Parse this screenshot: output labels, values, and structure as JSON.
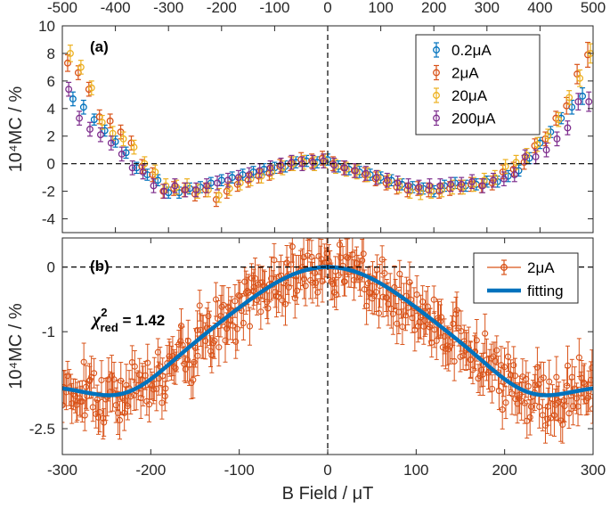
{
  "chart_data": [
    {
      "type": "scatter",
      "panel": "(a)",
      "xlabel_top": "",
      "ylabel": "10⁴MC / %",
      "xlim": [
        -500,
        500
      ],
      "ylim": [
        -5,
        10
      ],
      "xticks": [
        -500,
        -400,
        -300,
        -200,
        -100,
        0,
        100,
        200,
        300,
        400,
        500
      ],
      "xtick_labels": [
        "-500",
        "-400",
        "-300",
        "-200",
        "-100",
        "0",
        "100",
        "200",
        "300",
        "400",
        "500"
      ],
      "yticks": [
        -4,
        -2,
        0,
        2,
        4,
        6,
        8,
        10
      ],
      "ytick_labels": [
        "-4",
        "-2",
        "0",
        "2",
        "4",
        "6",
        "8",
        "10"
      ],
      "legend": {
        "placement": "top-right",
        "entries": [
          "0.2μA",
          "2μA",
          "20μA",
          "200μA"
        ]
      },
      "series": [
        {
          "name": "0.2μA",
          "color": "#0072BD",
          "x_step": 20,
          "x": [
            -480,
            -460,
            -440,
            -420,
            -400,
            -380,
            -360,
            -340,
            -320,
            -300,
            -280,
            -260,
            -240,
            -220,
            -200,
            -180,
            -160,
            -140,
            -120,
            -100,
            -80,
            -60,
            -40,
            -20,
            0,
            20,
            40,
            60,
            80,
            100,
            120,
            140,
            160,
            180,
            200,
            220,
            240,
            260,
            280,
            300,
            320,
            340,
            360,
            380,
            400,
            420,
            440,
            460,
            480
          ],
          "y": [
            4.7,
            4.1,
            3.2,
            2.4,
            1.6,
            0.8,
            -0.3,
            -0.8,
            -1.2,
            -2.1,
            -2.1,
            -1.8,
            -1.7,
            -1.4,
            -1.2,
            -1.0,
            -0.8,
            -0.6,
            -0.4,
            -0.3,
            -0.2,
            0.1,
            0.2,
            0.1,
            0.3,
            -0.2,
            -0.4,
            -0.6,
            -0.8,
            -1.0,
            -1.2,
            -1.5,
            -1.7,
            -1.8,
            -2.0,
            -1.6,
            -1.4,
            -1.6,
            -1.5,
            -1.3,
            -1.3,
            -0.9,
            -0.5,
            0.4,
            1.5,
            2.3,
            3.3,
            4.1,
            4.9
          ],
          "err": [
            0.5,
            0.5,
            0.4,
            0.4,
            0.4,
            0.4,
            0.4,
            0.4,
            0.4,
            0.4,
            0.4,
            0.4,
            0.4,
            0.4,
            0.4,
            0.4,
            0.4,
            0.4,
            0.4,
            0.4,
            0.4,
            0.4,
            0.4,
            0.4,
            0.4,
            0.4,
            0.4,
            0.4,
            0.4,
            0.4,
            0.4,
            0.4,
            0.4,
            0.4,
            0.4,
            0.4,
            0.4,
            0.4,
            0.4,
            0.4,
            0.4,
            0.4,
            0.4,
            0.4,
            0.4,
            0.4,
            0.4,
            0.5,
            0.6
          ]
        },
        {
          "name": "2μA",
          "color": "#D95319",
          "x_step": 20,
          "x": [
            -490,
            -470,
            -450,
            -430,
            -410,
            -390,
            -370,
            -350,
            -330,
            -310,
            -290,
            -270,
            -250,
            -230,
            -210,
            -190,
            -170,
            -150,
            -130,
            -110,
            -90,
            -70,
            -50,
            -30,
            -10,
            10,
            30,
            50,
            70,
            90,
            110,
            130,
            150,
            170,
            190,
            210,
            230,
            250,
            270,
            290,
            310,
            330,
            350,
            370,
            390,
            410,
            430,
            450,
            470,
            490
          ],
          "y": [
            7.3,
            6.6,
            5.4,
            3.4,
            3.1,
            2.3,
            1.5,
            -0.2,
            -0.8,
            -2.0,
            -1.8,
            -1.9,
            -2.2,
            -1.9,
            -2.6,
            -2.0,
            -1.5,
            -1.2,
            -0.9,
            -0.7,
            -0.2,
            0.0,
            0.3,
            0.2,
            0.4,
            0.0,
            -0.3,
            -0.5,
            -0.8,
            -1.1,
            -1.4,
            -1.7,
            -1.9,
            -1.8,
            -1.9,
            -2.0,
            -1.8,
            -1.7,
            -1.5,
            -1.6,
            -1.4,
            -0.6,
            -0.4,
            0.1,
            1.3,
            1.8,
            3.3,
            4.2,
            6.5,
            7.9
          ],
          "err": [
            0.6,
            0.5,
            0.5,
            0.5,
            0.5,
            0.5,
            0.5,
            0.5,
            0.5,
            0.5,
            0.5,
            0.5,
            0.5,
            0.5,
            0.5,
            0.5,
            0.5,
            0.5,
            0.5,
            0.5,
            0.5,
            0.5,
            0.5,
            0.5,
            0.5,
            0.5,
            0.5,
            0.5,
            0.5,
            0.5,
            0.5,
            0.5,
            0.5,
            0.5,
            0.5,
            0.5,
            0.5,
            0.5,
            0.5,
            0.5,
            0.5,
            0.5,
            0.5,
            0.5,
            0.5,
            0.5,
            0.5,
            0.6,
            0.7,
            0.9
          ]
        },
        {
          "name": "20μA",
          "color": "#EDB120",
          "x_step": 20,
          "x": [
            -485,
            -465,
            -445,
            -425,
            -405,
            -385,
            -365,
            -345,
            -325,
            -305,
            -285,
            -265,
            -245,
            -225,
            -205,
            -185,
            -165,
            -145,
            -125,
            -105,
            -85,
            -65,
            -45,
            -25,
            -5,
            15,
            35,
            55,
            75,
            95,
            115,
            135,
            155,
            175,
            195,
            215,
            235,
            255,
            275,
            295,
            315,
            335,
            355,
            375,
            395,
            415,
            435,
            455,
            475,
            495
          ],
          "y": [
            8.0,
            7.0,
            5.5,
            3.0,
            2.2,
            1.8,
            1.2,
            0.0,
            -0.6,
            -1.6,
            -1.7,
            -1.6,
            -2.0,
            -1.9,
            -2.3,
            -1.8,
            -1.4,
            -1.1,
            -0.9,
            -0.6,
            -0.3,
            0.0,
            0.1,
            0.0,
            0.2,
            -0.2,
            -0.4,
            -0.6,
            -0.8,
            -1.0,
            -1.3,
            -1.6,
            -2.0,
            -2.1,
            -2.0,
            -1.9,
            -1.7,
            -1.7,
            -1.5,
            -1.2,
            -1.0,
            -0.2,
            0.1,
            0.6,
            1.4,
            2.0,
            3.2,
            4.8,
            6.2,
            8.0
          ],
          "err": [
            0.6,
            0.5,
            0.5,
            0.5,
            0.5,
            0.5,
            0.5,
            0.5,
            0.5,
            0.5,
            0.5,
            0.5,
            0.5,
            0.5,
            0.5,
            0.5,
            0.5,
            0.5,
            0.5,
            0.5,
            0.5,
            0.5,
            0.5,
            0.5,
            0.5,
            0.5,
            0.5,
            0.5,
            0.5,
            0.5,
            0.5,
            0.5,
            0.5,
            0.5,
            0.5,
            0.5,
            0.5,
            0.5,
            0.5,
            0.5,
            0.5,
            0.5,
            0.5,
            0.5,
            0.5,
            0.5,
            0.5,
            0.5,
            0.6,
            0.7
          ]
        },
        {
          "name": "200μA",
          "color": "#7E2F8E",
          "x_step": 20,
          "x": [
            -488,
            -468,
            -448,
            -428,
            -408,
            -388,
            -368,
            -348,
            -328,
            -308,
            -288,
            -268,
            -248,
            -228,
            -208,
            -188,
            -168,
            -148,
            -128,
            -108,
            -88,
            -68,
            -48,
            -28,
            -8,
            12,
            32,
            52,
            72,
            92,
            112,
            132,
            152,
            172,
            192,
            212,
            232,
            252,
            272,
            292,
            312,
            332,
            352,
            372,
            392,
            412,
            432,
            452,
            472,
            492
          ],
          "y": [
            5.4,
            3.3,
            2.5,
            2.1,
            1.5,
            0.7,
            -0.3,
            -0.6,
            -1.6,
            -2.0,
            -1.6,
            -1.9,
            -1.9,
            -1.6,
            -1.4,
            -1.2,
            -1.0,
            -0.8,
            -0.5,
            -0.3,
            -0.1,
            0.1,
            0.0,
            0.1,
            0.2,
            -0.1,
            -0.3,
            -0.5,
            -0.7,
            -1.0,
            -1.2,
            -1.4,
            -1.6,
            -1.7,
            -1.6,
            -1.6,
            -1.5,
            -1.5,
            -1.3,
            -1.6,
            -1.2,
            -1.1,
            -0.8,
            0.5,
            0.5,
            1.0,
            1.8,
            2.6,
            4.5,
            4.5
          ],
          "err": [
            0.5,
            0.5,
            0.5,
            0.5,
            0.5,
            0.5,
            0.5,
            0.5,
            0.5,
            0.5,
            0.5,
            0.5,
            0.5,
            0.5,
            0.5,
            0.5,
            0.5,
            0.5,
            0.5,
            0.5,
            0.5,
            0.5,
            0.5,
            0.5,
            0.5,
            0.5,
            0.5,
            0.5,
            0.5,
            0.5,
            0.5,
            0.5,
            0.5,
            0.5,
            0.5,
            0.5,
            0.5,
            0.5,
            0.5,
            0.5,
            0.5,
            0.5,
            0.5,
            0.5,
            0.5,
            0.5,
            0.5,
            0.5,
            0.6,
            0.7
          ]
        }
      ]
    },
    {
      "type": "scatter",
      "panel": "(b)",
      "xlabel": "B Field / μT",
      "ylabel": "10⁴MC / %",
      "xlim": [
        -300,
        300
      ],
      "ylim": [
        -2.9,
        0.45
      ],
      "xticks": [
        -300,
        -200,
        -100,
        0,
        100,
        200,
        300
      ],
      "xtick_labels": [
        "-300",
        "-200",
        "-100",
        "0",
        "100",
        "200",
        "300"
      ],
      "yticks": [
        -2.5,
        -1,
        0
      ],
      "ytick_labels": [
        "-2.5",
        "-1",
        "0"
      ],
      "annotation": {
        "symbol": "χ",
        "superscript": "2",
        "subscript": "red",
        "text": " = 1.42"
      },
      "legend": {
        "placement": "top-right",
        "entries": [
          "2μA",
          "fitting"
        ]
      },
      "series": [
        {
          "name": "2μA",
          "color": "#D95319",
          "x_range": [
            -300,
            300
          ],
          "n_points": 380,
          "err": 0.26,
          "seed": 7
        },
        {
          "name": "fitting",
          "color": "#0072BD",
          "model": "gaussian_with_baseline",
          "amplitude": 2.3,
          "baseline": -1.85,
          "sigma": 110,
          "slope_peak": 240,
          "recover_to": -1.85
        }
      ]
    }
  ]
}
